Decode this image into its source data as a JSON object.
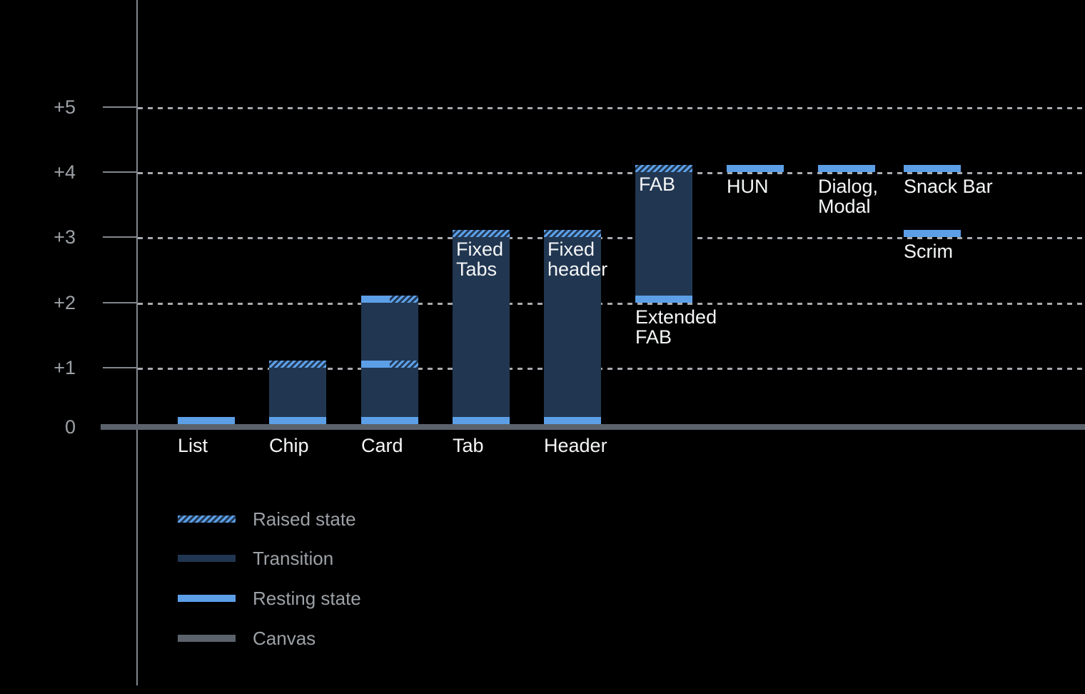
{
  "chart_data": {
    "type": "bar",
    "title": "",
    "subtitle": "",
    "description": "Dark-theme elevation diagram showing resting, transition and raised elevation states of UI components above the canvas",
    "y_axis": {
      "ticks": [
        {
          "label": "+5",
          "value": 5
        },
        {
          "label": "+4",
          "value": 4
        },
        {
          "label": "+3",
          "value": 3
        },
        {
          "label": "+2",
          "value": 2
        },
        {
          "label": "+1",
          "value": 1
        },
        {
          "label": "0",
          "value": 0
        }
      ],
      "range": [
        0,
        5
      ],
      "grid": "dotted horizontal gridlines at +1 through +5"
    },
    "bars": [
      {
        "name": "list",
        "axis_label": "List",
        "slot": 0,
        "segments": [
          {
            "kind": "resting",
            "elev": 0
          }
        ]
      },
      {
        "name": "chip",
        "axis_label": "Chip",
        "slot": 1,
        "segments": [
          {
            "kind": "resting",
            "elev": 0
          },
          {
            "kind": "transition",
            "from": 0,
            "to": 1
          },
          {
            "kind": "raised",
            "elev": 1
          }
        ]
      },
      {
        "name": "card",
        "axis_label": "Card",
        "slot": 2,
        "segments": [
          {
            "kind": "resting",
            "elev": 0
          },
          {
            "kind": "transition",
            "from": 0,
            "to": 2
          },
          {
            "kind": "resting-raised",
            "elev": 1
          },
          {
            "kind": "resting-raised",
            "elev": 2
          }
        ]
      },
      {
        "name": "tab",
        "axis_label": "Tab",
        "slot": 3,
        "inside_label": {
          "lines": [
            "Fixed",
            "Tabs"
          ]
        },
        "segments": [
          {
            "kind": "resting",
            "elev": 0
          },
          {
            "kind": "transition",
            "from": 0,
            "to": 3
          },
          {
            "kind": "raised",
            "elev": 3
          }
        ]
      },
      {
        "name": "header",
        "axis_label": "Header",
        "slot": 4,
        "inside_label": {
          "lines": [
            "Fixed",
            "header"
          ]
        },
        "segments": [
          {
            "kind": "resting",
            "elev": 0
          },
          {
            "kind": "transition",
            "from": 0,
            "to": 3
          },
          {
            "kind": "raised",
            "elev": 3
          }
        ]
      },
      {
        "name": "fab",
        "slot": 5,
        "inside_label": {
          "lines": [
            "FAB"
          ]
        },
        "below_label": {
          "lines": [
            "Extended",
            "FAB"
          ],
          "at_elev": 2
        },
        "segments": [
          {
            "kind": "resting",
            "elev": 2
          },
          {
            "kind": "transition",
            "from": 2,
            "to": 4
          },
          {
            "kind": "raised",
            "elev": 4
          }
        ]
      },
      {
        "name": "hun",
        "slot": 6,
        "below_label": {
          "lines": [
            "HUN"
          ],
          "at_elev": 4
        },
        "segments": [
          {
            "kind": "resting",
            "elev": 4
          }
        ]
      },
      {
        "name": "dialog-modal",
        "slot": 7,
        "below_label": {
          "lines": [
            "Dialog,",
            "Modal"
          ],
          "at_elev": 4
        },
        "segments": [
          {
            "kind": "resting",
            "elev": 4
          }
        ]
      },
      {
        "name": "snack-bar",
        "slot": 8,
        "below_label": {
          "lines": [
            "Snack Bar"
          ],
          "at_elev": 4
        },
        "segments": [
          {
            "kind": "resting",
            "elev": 4
          }
        ]
      },
      {
        "name": "scrim",
        "slot": 8,
        "below_label": {
          "lines": [
            "Scrim"
          ],
          "at_elev": 3
        },
        "segments": [
          {
            "kind": "resting",
            "elev": 3
          }
        ]
      }
    ],
    "legend": {
      "position": "bottom-left",
      "items": [
        {
          "swatch": "raised",
          "label": "Raised state"
        },
        {
          "swatch": "transition",
          "label": "Transition"
        },
        {
          "swatch": "resting",
          "label": "Resting state"
        },
        {
          "swatch": "canvas",
          "label": "Canvas"
        }
      ]
    },
    "colors": {
      "background": "#000000",
      "resting": "#5C9FE7",
      "transition": "#213650",
      "canvas": "#5B626B",
      "grid_dash": "#A6AAAE",
      "axis_line": "#81878D",
      "bar_text": "#F5F6F7",
      "axis_text": "#9CA1A6"
    }
  }
}
